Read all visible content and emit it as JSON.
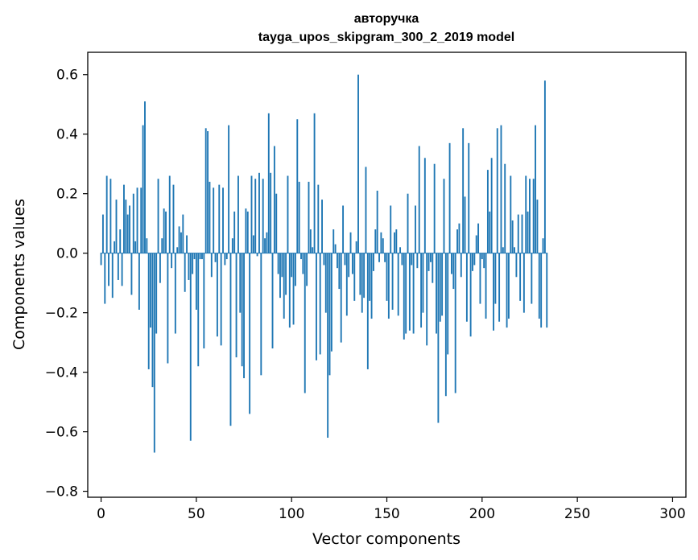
{
  "chart_data": {
    "type": "bar",
    "title": "авторучка",
    "subtitle": "tayga_upos_skipgram_300_2_2019 model",
    "xlabel": "Vector components",
    "ylabel": "Components values",
    "xlim": [
      -7,
      307
    ],
    "ylim": [
      -0.82,
      0.675
    ],
    "xticks": [
      0,
      50,
      100,
      150,
      200,
      250,
      300
    ],
    "yticks": [
      0.6,
      0.4,
      0.2,
      0.0,
      -0.2,
      -0.4,
      -0.6,
      -0.8
    ],
    "xtick_labels": [
      "0",
      "50",
      "100",
      "150",
      "200",
      "250",
      "300"
    ],
    "ytick_labels": [
      "0.6",
      "0.4",
      "0.2",
      "0.0",
      "−0.2",
      "−0.4",
      "−0.6",
      "−0.8"
    ],
    "bar_color": "#1f77b4",
    "grid": false,
    "series": [
      {
        "values": [
          -0.04,
          0.13,
          -0.17,
          0.26,
          -0.11,
          0.25,
          -0.15,
          0.04,
          0.18,
          -0.09,
          0.08,
          -0.11,
          0.23,
          0.18,
          0.13,
          0.16,
          -0.14,
          0.2,
          0.04,
          0.22,
          -0.19,
          0.22,
          0.43,
          0.51,
          0.05,
          -0.39,
          -0.25,
          -0.45,
          -0.67,
          -0.27,
          0.25,
          -0.1,
          0.05,
          0.15,
          0.14,
          -0.37,
          0.26,
          -0.05,
          0.23,
          -0.27,
          0.02,
          0.09,
          0.07,
          0.13,
          -0.13,
          0.06,
          -0.09,
          -0.63,
          -0.07,
          -0.02,
          -0.19,
          -0.38,
          -0.02,
          -0.02,
          -0.32,
          0.42,
          0.41,
          0.24,
          -0.08,
          0.22,
          -0.03,
          -0.28,
          0.23,
          -0.31,
          0.22,
          -0.04,
          -0.02,
          0.43,
          -0.58,
          0.05,
          0.14,
          -0.35,
          0.26,
          -0.2,
          -0.38,
          -0.42,
          0.15,
          0.14,
          -0.54,
          0.26,
          0.06,
          0.25,
          -0.01,
          0.27,
          -0.41,
          0.25,
          0.05,
          0.07,
          0.47,
          0.27,
          -0.32,
          0.36,
          0.2,
          -0.07,
          -0.15,
          -0.08,
          -0.22,
          -0.14,
          0.26,
          -0.25,
          -0.08,
          -0.24,
          -0.11,
          0.45,
          0.24,
          -0.02,
          -0.07,
          -0.47,
          -0.11,
          0.24,
          0.08,
          0.02,
          0.47,
          -0.36,
          0.23,
          -0.34,
          0.18,
          -0.04,
          -0.2,
          -0.62,
          -0.41,
          -0.33,
          0.08,
          0.03,
          -0.05,
          -0.12,
          -0.3,
          0.16,
          -0.04,
          -0.21,
          -0.08,
          0.07,
          -0.07,
          -0.16,
          0.04,
          0.6,
          -0.14,
          -0.2,
          -0.15,
          0.29,
          -0.39,
          -0.16,
          -0.22,
          -0.06,
          0.08,
          0.21,
          -0.03,
          0.07,
          0.05,
          -0.03,
          -0.16,
          -0.22,
          0.16,
          -0.19,
          0.07,
          0.08,
          -0.21,
          0.02,
          -0.04,
          -0.29,
          -0.27,
          0.2,
          -0.26,
          -0.04,
          -0.27,
          0.16,
          -0.05,
          0.36,
          -0.25,
          -0.2,
          0.32,
          -0.31,
          -0.06,
          -0.03,
          -0.1,
          0.3,
          -0.27,
          -0.57,
          -0.23,
          -0.21,
          0.25,
          -0.48,
          -0.34,
          0.37,
          -0.07,
          -0.12,
          -0.47,
          0.08,
          0.1,
          -0.08,
          0.42,
          0.19,
          -0.23,
          0.37,
          -0.28,
          -0.06,
          -0.04,
          0.06,
          0.1,
          -0.17,
          -0.02,
          -0.05,
          -0.22,
          0.28,
          0.14,
          0.32,
          -0.26,
          -0.17,
          0.42,
          -0.23,
          0.43,
          0.02,
          0.3,
          -0.25,
          -0.22,
          0.26,
          0.11,
          0.02,
          -0.08,
          0.13,
          -0.16,
          0.13,
          -0.2,
          0.26,
          0.14,
          0.25,
          -0.17,
          0.25,
          0.43,
          0.18,
          -0.22,
          -0.25,
          0.05,
          0.58,
          -0.25
        ]
      }
    ]
  }
}
